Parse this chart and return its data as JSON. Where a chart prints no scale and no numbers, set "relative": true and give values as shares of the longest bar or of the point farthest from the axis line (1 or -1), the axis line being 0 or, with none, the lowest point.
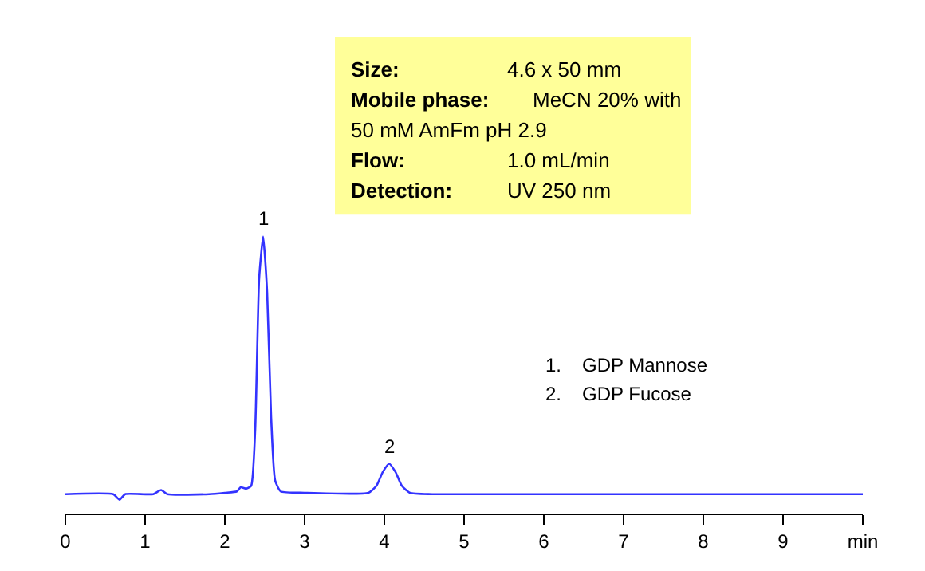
{
  "chart_data": {
    "type": "line",
    "relative": true,
    "grid": false,
    "marker": "none",
    "line_style": "solid",
    "x": [
      0,
      0.6,
      0.68,
      0.75,
      1.1,
      1.2,
      1.28,
      1.8,
      2.0,
      2.15,
      2.2,
      2.27,
      2.33,
      2.38,
      2.43,
      2.48,
      2.53,
      2.58,
      2.63,
      2.7,
      3.0,
      3.8,
      3.9,
      3.98,
      4.06,
      4.14,
      4.22,
      4.32,
      4.6,
      10
    ],
    "series": [
      {
        "color": "#3333ff",
        "values": [
          0.07,
          0.07,
          0.05,
          0.07,
          0.07,
          0.085,
          0.07,
          0.07,
          0.075,
          0.08,
          0.095,
          0.09,
          0.1,
          0.3,
          0.85,
          1.0,
          0.8,
          0.35,
          0.12,
          0.08,
          0.075,
          0.075,
          0.1,
          0.15,
          0.18,
          0.15,
          0.1,
          0.075,
          0.07,
          0.07
        ]
      }
    ],
    "xlim": [
      0,
      10
    ],
    "xticks": [
      0,
      1,
      2,
      3,
      4,
      5,
      6,
      7,
      8,
      9,
      {
        "value": 10,
        "label": "min"
      }
    ],
    "annotations": [
      "Size: 4.6 x 50 mm\nMobile phase: MeCN 20% with\n50 mM AmFm pH 2.9\nFlow: 1.0 mL/min\nDetection: UV 250 nm",
      "1. GDP Mannose\n2. GDP Fucose",
      {
        "text": "1",
        "x": 2.48,
        "y": 1.0
      },
      {
        "text": "2",
        "x": 4.06,
        "y": 0.18
      }
    ]
  }
}
